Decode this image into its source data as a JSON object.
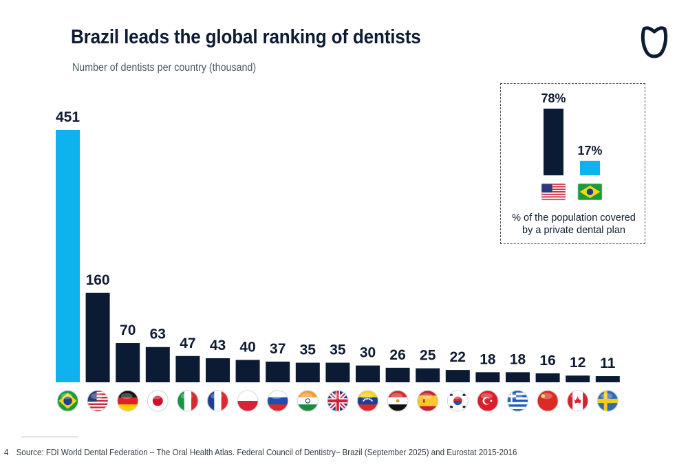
{
  "title": "Brazil leads the global ranking of dentists",
  "subtitle": "Number of dentists per country (thousand)",
  "colors": {
    "highlight": "#0eb2ef",
    "bar": "#0b1b33",
    "text": "#0d1b33"
  },
  "chart_data": {
    "type": "bar",
    "title": "Brazil leads the global ranking of dentists",
    "ylabel": "Number of dentists per country (thousand)",
    "xlabel": "",
    "ylim": [
      0,
      451
    ],
    "categories": [
      "Brazil",
      "United States",
      "Germany",
      "Japan",
      "Italy",
      "France",
      "Poland",
      "Russia",
      "India",
      "United Kingdom",
      "Venezuela",
      "Egypt",
      "Spain",
      "South Korea",
      "Turkey",
      "Greece",
      "China",
      "Canada",
      "Sweden"
    ],
    "values": [
      451,
      160,
      70,
      63,
      47,
      43,
      40,
      37,
      35,
      35,
      30,
      26,
      25,
      22,
      18,
      18,
      16,
      12,
      11
    ],
    "labels": [
      "451",
      "160",
      "70",
      "63",
      "47",
      "43",
      "40",
      "37",
      "35",
      "35",
      "30",
      "26",
      "25",
      "22",
      "18",
      "18",
      "16",
      "12",
      "11"
    ],
    "highlight_category": "Brazil",
    "inset": {
      "type": "bar",
      "caption_line1": "% of the population covered",
      "caption_line2": "by a private dental plan",
      "categories": [
        "United States",
        "Brazil"
      ],
      "values": [
        78,
        17
      ],
      "labels": [
        "78%",
        "17%"
      ]
    }
  },
  "logo": {
    "icon": "tooth-icon"
  },
  "footer": {
    "page_number": "4",
    "source": "Source: FDI World Dental Federation – The Oral Health Atlas. Federal Council of Dentistry– Brazil (September 2025) and Eurostat 2015-2016"
  }
}
